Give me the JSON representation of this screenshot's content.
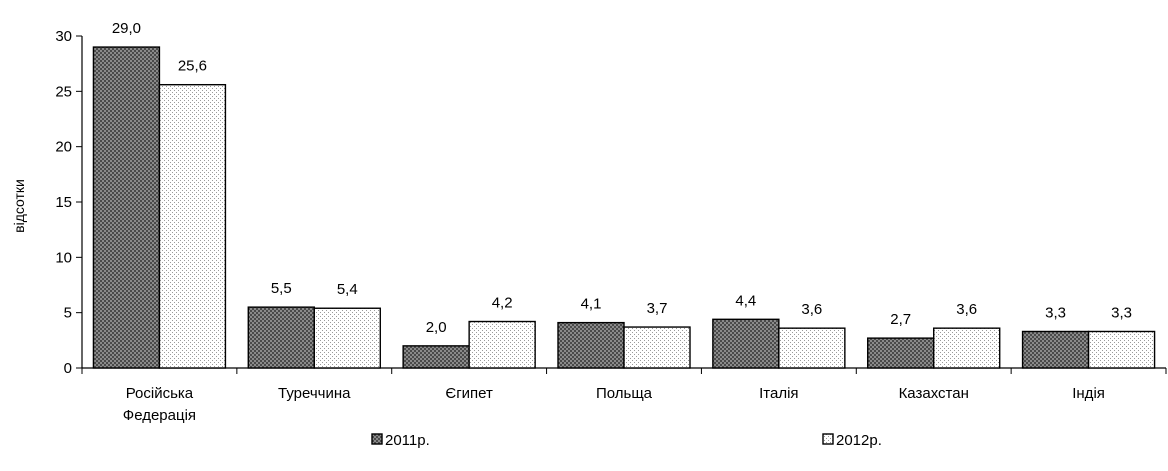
{
  "chart_data": {
    "type": "bar",
    "title": "",
    "xlabel": "",
    "ylabel": "відсотки",
    "ylim": [
      0,
      30
    ],
    "yticks": [
      0,
      5,
      10,
      15,
      20,
      25,
      30
    ],
    "grid": false,
    "legend_position": "bottom",
    "categories": [
      [
        "Російська",
        "Федерація"
      ],
      [
        "Туреччина"
      ],
      [
        "Єгипет"
      ],
      [
        "Польща"
      ],
      [
        "Італія"
      ],
      [
        "Казахстан"
      ],
      [
        "Індія"
      ]
    ],
    "series": [
      {
        "name": "2011р.",
        "values": [
          29.0,
          5.5,
          2.0,
          4.1,
          4.4,
          2.7,
          3.3
        ],
        "labels": [
          "29,0",
          "5,5",
          "2,0",
          "4,1",
          "4,4",
          "2,7",
          "3,3"
        ],
        "fill": "#6b6b6b",
        "pattern": "dense-dots-dark"
      },
      {
        "name": "2012р.",
        "values": [
          25.6,
          5.4,
          4.2,
          3.7,
          3.6,
          3.6,
          3.3
        ],
        "labels": [
          "25,6",
          "5,4",
          "4,2",
          "3,7",
          "3,6",
          "3,6",
          "3,3"
        ],
        "fill": "#ffffff",
        "pattern": "sparse-dots-light"
      }
    ]
  }
}
